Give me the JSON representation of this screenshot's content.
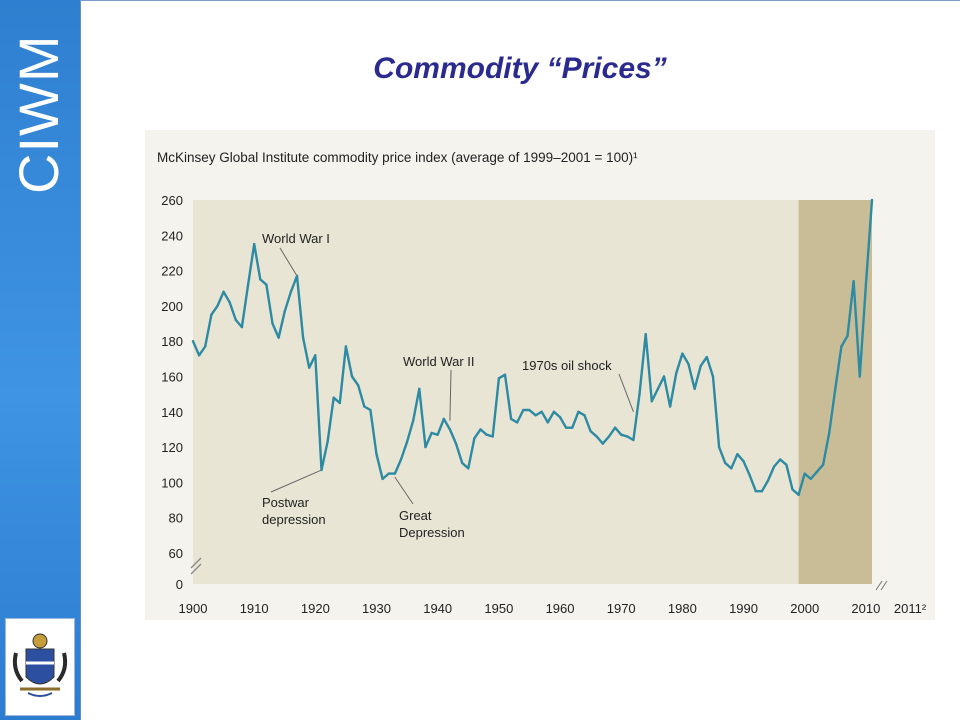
{
  "slide": {
    "title": "Commodity “Prices”",
    "brand": "CIWM"
  },
  "colors": {
    "sidebar": "#3a8fdf",
    "title": "#2a2a8f",
    "line": "#2d8aa3",
    "plot_bg": "#e9e5d5",
    "shade": "#c9bd97"
  },
  "chart_data": {
    "type": "line",
    "title": "McKinsey Global Institute commodity price index (average of 1999–2001 = 100)¹",
    "xlabel": "",
    "ylabel": "",
    "xlim": [
      1900,
      2011
    ],
    "ylim": [
      0,
      260
    ],
    "y_axis_break": "between 0 and 60",
    "grid": false,
    "x_ticks": [
      "1900",
      "1910",
      "1920",
      "1930",
      "1940",
      "1950",
      "1960",
      "1970",
      "1980",
      "1990",
      "2000",
      "2010"
    ],
    "x_tick_extra": "2011²",
    "y_ticks": [
      "260",
      "240",
      "220",
      "200",
      "180",
      "160",
      "140",
      "120",
      "100",
      "80",
      "60",
      "0"
    ],
    "shaded_region": [
      1999,
      2011
    ],
    "annotations": [
      {
        "text": "World War I",
        "x": 1917,
        "y": 217
      },
      {
        "text": "World War II",
        "x": 1942,
        "y": 135
      },
      {
        "text": "1970s oil shock",
        "x": 1972,
        "y": 140
      },
      {
        "text": "Postwar depression",
        "lines": [
          "Postwar",
          "depression"
        ],
        "x": 1921,
        "y": 107
      },
      {
        "text": "Great Depression",
        "lines": [
          "Great",
          "Depression"
        ],
        "x": 1933,
        "y": 103
      }
    ],
    "series": [
      {
        "x": [
          1900,
          1901,
          1902,
          1903,
          1904,
          1905,
          1906,
          1907,
          1908,
          1909,
          1910,
          1911,
          1912,
          1913,
          1914,
          1915,
          1916,
          1917,
          1918,
          1919,
          1920,
          1921,
          1922,
          1923,
          1924,
          1925,
          1926,
          1927,
          1928,
          1929,
          1930,
          1931,
          1932,
          1933,
          1934,
          1935,
          1936,
          1937,
          1938,
          1939,
          1940,
          1941,
          1942,
          1943,
          1944,
          1945,
          1946,
          1947,
          1948,
          1949,
          1950,
          1951,
          1952,
          1953,
          1954,
          1955,
          1956,
          1957,
          1958,
          1959,
          1960,
          1961,
          1962,
          1963,
          1964,
          1965,
          1966,
          1967,
          1968,
          1969,
          1970,
          1971,
          1972,
          1973,
          1974,
          1975,
          1976,
          1977,
          1978,
          1979,
          1980,
          1981,
          1982,
          1983,
          1984,
          1985,
          1986,
          1987,
          1988,
          1989,
          1990,
          1991,
          1992,
          1993,
          1994,
          1995,
          1996,
          1997,
          1998,
          1999,
          2000,
          2001,
          2002,
          2003,
          2004,
          2005,
          2006,
          2007,
          2008,
          2009,
          2010,
          2011
        ],
        "values": [
          180,
          172,
          177,
          195,
          200,
          208,
          202,
          192,
          188,
          212,
          235,
          215,
          212,
          190,
          182,
          197,
          208,
          217,
          182,
          165,
          172,
          107,
          123,
          148,
          145,
          177,
          160,
          155,
          143,
          141,
          116,
          102,
          105,
          105,
          113,
          123,
          135,
          153,
          120,
          128,
          127,
          136,
          130,
          122,
          111,
          108,
          125,
          130,
          127,
          126,
          159,
          161,
          136,
          134,
          141,
          141,
          138,
          140,
          134,
          140,
          137,
          131,
          131,
          140,
          138,
          129,
          126,
          122,
          126,
          131,
          127,
          126,
          124,
          150,
          184,
          146,
          153,
          160,
          143,
          162,
          173,
          167,
          153,
          166,
          171,
          160,
          120,
          111,
          108,
          116,
          112,
          104,
          95,
          95,
          101,
          109,
          113,
          110,
          96,
          93,
          105,
          102,
          106,
          110,
          128,
          153,
          177,
          183,
          214,
          160,
          212,
          260
        ]
      }
    ]
  }
}
